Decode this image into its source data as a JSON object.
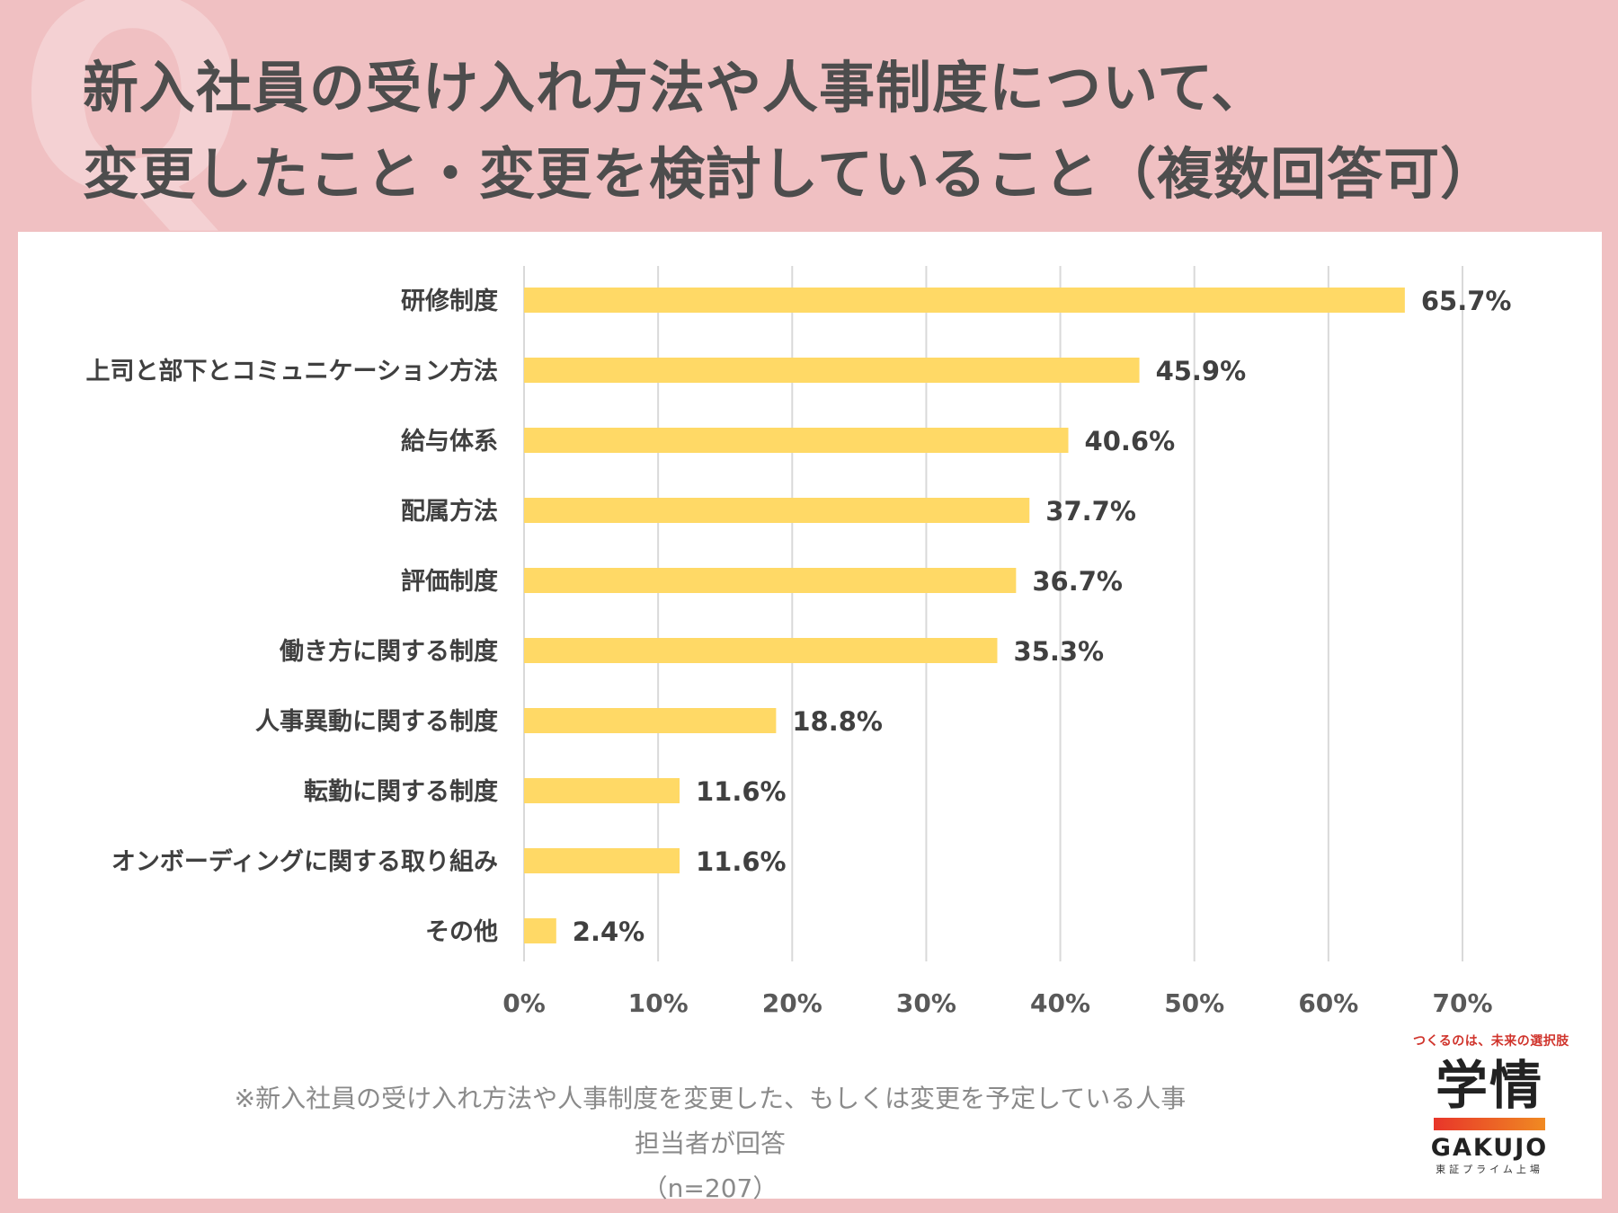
{
  "header": {
    "q_mark": "Q",
    "title_line1": "新入社員の受け入れ方法や人事制度について、",
    "title_line2": "変更したこと・変更を検討していること（複数回答可）"
  },
  "chart_data": {
    "type": "bar",
    "orientation": "horizontal",
    "categories": [
      "研修制度",
      "上司と部下とコミュニケーション方法",
      "給与体系",
      "配属方法",
      "評価制度",
      "働き方に関する制度",
      "人事異動に関する制度",
      "転勤に関する制度",
      "オンボーディングに関する取り組み",
      "その他"
    ],
    "values": [
      65.7,
      45.9,
      40.6,
      37.7,
      36.7,
      35.3,
      18.8,
      11.6,
      11.6,
      2.4
    ],
    "value_labels": [
      "65.7%",
      "45.9%",
      "40.6%",
      "37.7%",
      "36.7%",
      "35.3%",
      "18.8%",
      "11.6%",
      "11.6%",
      "2.4%"
    ],
    "xlim": [
      0,
      70
    ],
    "xticks": [
      "0%",
      "10%",
      "20%",
      "30%",
      "40%",
      "50%",
      "60%",
      "70%"
    ],
    "grid": true,
    "bar_color": "#ffd966",
    "grid_color": "#d9d9d9"
  },
  "footnote": {
    "line1": "※新入社員の受け入れ方法や人事制度を変更した、もしくは変更を予定している人事担当者が回答",
    "line2": "（n=207）"
  },
  "logo": {
    "tagline": "つくるのは、未来の選択肢",
    "kanji": "学情",
    "name": "GAKUJO",
    "sub": "東証プライム上場"
  }
}
